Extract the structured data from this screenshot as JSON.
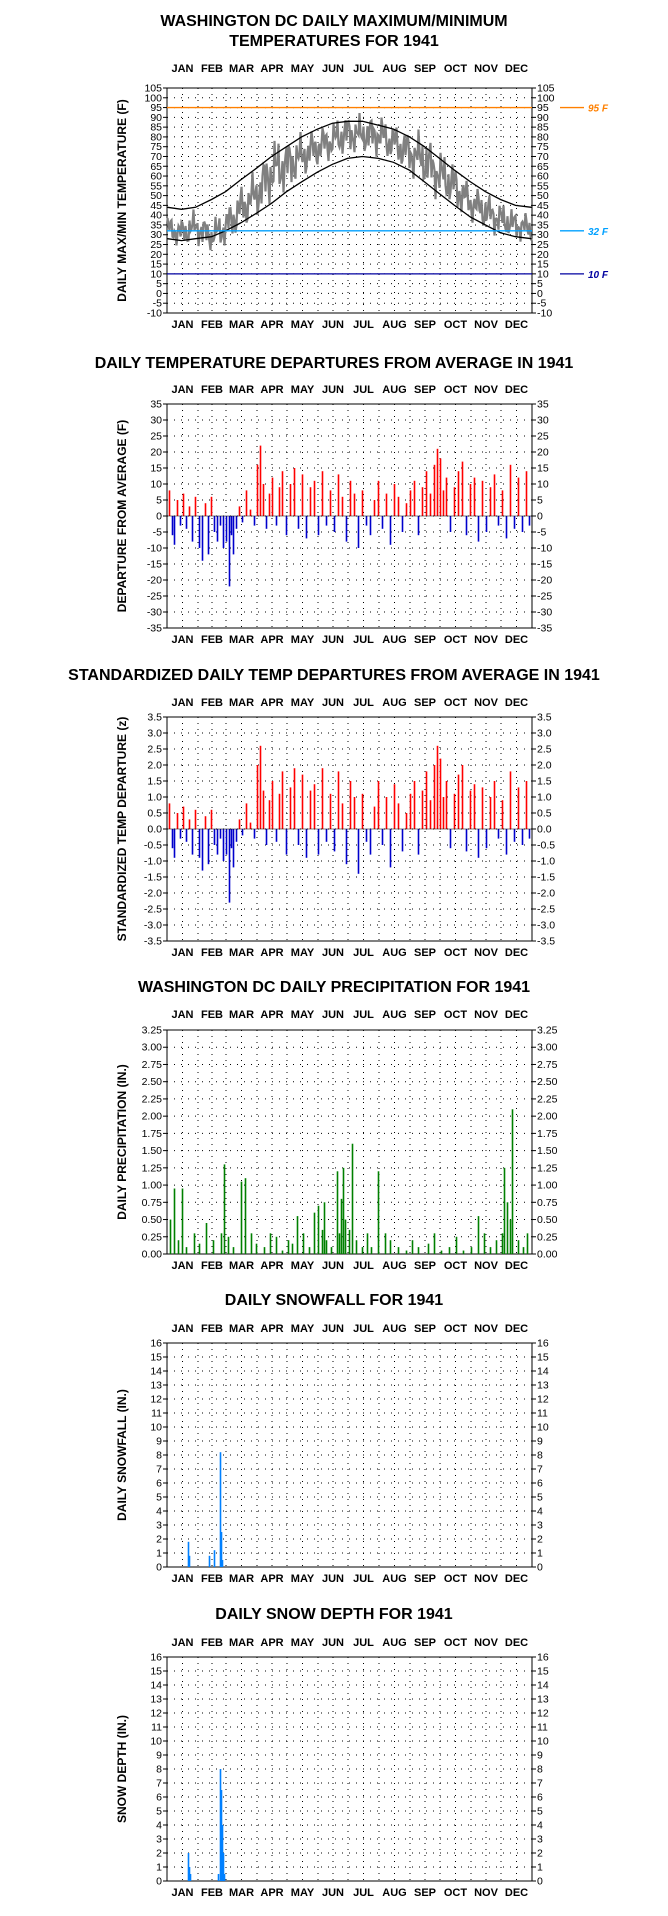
{
  "months": [
    "JAN",
    "FEB",
    "MAR",
    "APR",
    "MAY",
    "JUN",
    "JUL",
    "AUG",
    "SEP",
    "OCT",
    "NOV",
    "DEC"
  ],
  "chart_data": [
    {
      "id": "temp",
      "type": "line",
      "title": "WASHINGTON DC DAILY MAXIMUM/MINIMUM",
      "title2": "TEMPERATURES FOR 1941",
      "ylabel": "DAILY MAX/MIN TEMPERATURE (F)",
      "ylim": [
        -10,
        105
      ],
      "ystep": 5,
      "grid": true,
      "ref_lines": [
        {
          "value": 95,
          "label": "95 F",
          "color": "#ff8000"
        },
        {
          "value": 32,
          "label": "32 F",
          "color": "#00a0ff"
        },
        {
          "value": 10,
          "label": "10 F",
          "color": "#0000a0"
        }
      ],
      "series": [
        {
          "kind": "range",
          "color": "#808080",
          "x": [
            1,
            15,
            29,
            45,
            59,
            74,
            90,
            105,
            120,
            135,
            151,
            166,
            181,
            196,
            212,
            227,
            243,
            258,
            273,
            288,
            304,
            319,
            334,
            349,
            365
          ],
          "low": [
            24,
            22,
            24,
            20,
            22,
            28,
            36,
            44,
            50,
            56,
            62,
            66,
            70,
            70,
            68,
            64,
            58,
            52,
            46,
            40,
            34,
            30,
            28,
            26,
            24
          ],
          "high": [
            42,
            40,
            44,
            38,
            46,
            58,
            66,
            80,
            82,
            84,
            88,
            90,
            94,
            92,
            94,
            90,
            86,
            84,
            76,
            70,
            58,
            54,
            48,
            44,
            42
          ]
        },
        {
          "kind": "line",
          "color": "#000000",
          "x": [
            1,
            15,
            29,
            45,
            59,
            74,
            90,
            105,
            120,
            135,
            151,
            166,
            181,
            196,
            212,
            227,
            243,
            258,
            273,
            288,
            304,
            319,
            334,
            349,
            365
          ],
          "y": [
            44,
            43,
            44,
            48,
            52,
            58,
            64,
            70,
            75,
            80,
            84,
            87,
            88,
            88,
            86,
            84,
            80,
            75,
            69,
            63,
            57,
            52,
            48,
            45,
            44
          ]
        },
        {
          "kind": "line",
          "color": "#000000",
          "x": [
            1,
            15,
            29,
            45,
            59,
            74,
            90,
            105,
            120,
            135,
            151,
            166,
            181,
            196,
            212,
            227,
            243,
            258,
            273,
            288,
            304,
            319,
            334,
            349,
            365
          ],
          "y": [
            28,
            27,
            28,
            29,
            32,
            36,
            41,
            46,
            52,
            57,
            62,
            66,
            69,
            70,
            69,
            67,
            63,
            57,
            51,
            45,
            39,
            35,
            31,
            29,
            28
          ]
        }
      ]
    },
    {
      "id": "dep",
      "type": "bar",
      "title": "DAILY TEMPERATURE DEPARTURES FROM AVERAGE IN 1941",
      "ylabel": "DEPARTURE FROM AVERAGE (F)",
      "ylim": [
        -35,
        35
      ],
      "ystep": 5,
      "grid": true,
      "pos_color": "#ff0000",
      "neg_color": "#0000cc",
      "x": [
        3,
        6,
        8,
        11,
        14,
        17,
        20,
        23,
        26,
        29,
        33,
        36,
        39,
        42,
        45,
        48,
        51,
        54,
        57,
        60,
        63,
        65,
        67,
        70,
        73,
        76,
        80,
        84,
        88,
        91,
        94,
        97,
        100,
        103,
        106,
        110,
        113,
        116,
        120,
        124,
        128,
        132,
        136,
        140,
        144,
        148,
        152,
        156,
        160,
        164,
        168,
        172,
        176,
        180,
        184,
        188,
        192,
        196,
        200,
        204,
        208,
        212,
        216,
        220,
        224,
        228,
        232,
        236,
        240,
        244,
        248,
        252,
        256,
        260,
        264,
        268,
        271,
        274,
        277,
        280,
        284,
        288,
        292,
        296,
        300,
        304,
        308,
        312,
        316,
        320,
        324,
        328,
        332,
        336,
        340,
        344,
        348,
        352,
        356,
        360,
        363
      ],
      "y": [
        8,
        -6,
        -9,
        5,
        -3,
        7,
        -4,
        3,
        -8,
        6,
        -10,
        -14,
        4,
        -12,
        6,
        -5,
        -8,
        -3,
        -10,
        -8,
        -22,
        -6,
        -12,
        -4,
        3,
        -2,
        8,
        2,
        -3,
        16,
        22,
        10,
        -4,
        7,
        12,
        -3,
        9,
        14,
        -6,
        10,
        15,
        -4,
        13,
        -7,
        9,
        11,
        -6,
        14,
        -3,
        8,
        -5,
        13,
        6,
        -8,
        11,
        7,
        -10,
        8,
        -3,
        -6,
        5,
        11,
        -4,
        7,
        -9,
        10,
        6,
        -5,
        4,
        8,
        11,
        -6,
        9,
        14,
        7,
        16,
        21,
        18,
        8,
        12,
        -5,
        9,
        14,
        17,
        -6,
        10,
        12,
        -8,
        11,
        -5,
        9,
        13,
        -3,
        8,
        -7,
        16,
        -4,
        12,
        -5,
        14,
        -3
      ]
    },
    {
      "id": "std",
      "type": "bar",
      "title": "STANDARDIZED DAILY TEMP DEPARTURES FROM AVERAGE IN 1941",
      "ylabel": "STANDARDIZED TEMP DEPARTURE (z)",
      "ylim": [
        -3.5,
        3.5
      ],
      "ystep": 0.5,
      "decimals": 1,
      "grid": true,
      "pos_color": "#ff0000",
      "neg_color": "#0000cc",
      "x": [
        3,
        6,
        8,
        11,
        14,
        17,
        20,
        23,
        26,
        29,
        33,
        36,
        39,
        42,
        45,
        48,
        51,
        54,
        57,
        60,
        63,
        65,
        67,
        70,
        73,
        76,
        80,
        84,
        88,
        91,
        94,
        97,
        100,
        103,
        106,
        110,
        113,
        116,
        120,
        124,
        128,
        132,
        136,
        140,
        144,
        148,
        152,
        156,
        160,
        164,
        168,
        172,
        176,
        180,
        184,
        188,
        192,
        196,
        200,
        204,
        208,
        212,
        216,
        220,
        224,
        228,
        232,
        236,
        240,
        244,
        248,
        252,
        256,
        260,
        264,
        268,
        271,
        274,
        277,
        280,
        284,
        288,
        292,
        296,
        300,
        304,
        308,
        312,
        316,
        320,
        324,
        328,
        332,
        336,
        340,
        344,
        348,
        352,
        356,
        360,
        363
      ],
      "y": [
        0.8,
        -0.6,
        -0.9,
        0.5,
        -0.3,
        0.7,
        -0.4,
        0.3,
        -0.8,
        0.6,
        -0.9,
        -1.3,
        0.4,
        -1.1,
        0.6,
        -0.5,
        -0.8,
        -0.3,
        -1.0,
        -0.8,
        -2.3,
        -0.6,
        -1.2,
        -0.4,
        0.3,
        -0.2,
        0.8,
        0.2,
        -0.3,
        2.0,
        2.6,
        1.2,
        -0.5,
        0.9,
        1.5,
        -0.4,
        1.1,
        1.8,
        -0.8,
        1.3,
        1.9,
        -0.5,
        1.7,
        -0.9,
        1.2,
        1.4,
        -0.8,
        1.9,
        -0.4,
        1.1,
        -0.7,
        1.8,
        0.8,
        -1.1,
        1.5,
        1.0,
        -1.4,
        1.1,
        -0.4,
        -0.8,
        0.7,
        1.5,
        -0.5,
        1.0,
        -1.2,
        1.4,
        0.8,
        -0.7,
        0.5,
        1.1,
        1.5,
        -0.8,
        1.2,
        1.8,
        0.9,
        2.0,
        2.6,
        2.2,
        1.0,
        1.5,
        -0.6,
        1.1,
        1.7,
        2.0,
        -0.7,
        1.2,
        1.4,
        -0.9,
        1.3,
        -0.6,
        1.0,
        1.5,
        -0.3,
        0.9,
        -0.8,
        1.8,
        -0.4,
        1.3,
        -0.5,
        1.5,
        -0.3
      ]
    },
    {
      "id": "prcp",
      "type": "bar",
      "title": "WASHINGTON DC DAILY PRECIPITATION FOR 1941",
      "ylabel": "DAILY PRECIPITATION (IN.)",
      "ylim": [
        0,
        3.25
      ],
      "ystep": 0.25,
      "decimals": 2,
      "grid": true,
      "color": "#008000",
      "x": [
        4,
        8,
        12,
        16,
        20,
        28,
        33,
        40,
        47,
        55,
        58,
        62,
        67,
        75,
        79,
        85,
        90,
        98,
        104,
        110,
        116,
        122,
        126,
        131,
        137,
        143,
        148,
        152,
        156,
        158,
        160,
        165,
        171,
        173,
        175,
        177,
        179,
        183,
        186,
        190,
        196,
        201,
        205,
        212,
        219,
        224,
        232,
        240,
        246,
        252,
        262,
        268,
        275,
        283,
        290,
        297,
        305,
        312,
        318,
        324,
        330,
        336,
        338,
        341,
        344,
        346,
        352,
        357,
        361
      ],
      "y": [
        0.5,
        0.95,
        0.2,
        0.95,
        0.1,
        0.3,
        0.15,
        0.45,
        0.2,
        0.3,
        1.3,
        0.25,
        0.1,
        1.05,
        1.1,
        0.3,
        0.15,
        0.1,
        0.3,
        0.25,
        0.05,
        0.2,
        0.15,
        0.55,
        0.3,
        0.1,
        0.6,
        0.7,
        0.35,
        0.75,
        0.2,
        0.1,
        1.2,
        0.3,
        0.8,
        1.25,
        0.5,
        0.35,
        1.6,
        0.2,
        0.1,
        0.3,
        0.1,
        1.2,
        0.3,
        0.2,
        0.1,
        0.05,
        0.2,
        0.1,
        0.15,
        0.3,
        0.05,
        0.1,
        0.25,
        0.05,
        0.1,
        0.55,
        0.3,
        0.1,
        0.2,
        0.3,
        1.25,
        0.75,
        0.5,
        2.1,
        0.2,
        0.1,
        0.3
      ]
    },
    {
      "id": "snow",
      "type": "bar",
      "title": "DAILY SNOWFALL FOR 1941",
      "ylabel": "DAILY SNOWFALL (IN.)",
      "ylim": [
        0,
        16
      ],
      "ystep": 1,
      "grid": true,
      "color": "#0080ff",
      "x": [
        22,
        23,
        43,
        48,
        54,
        55,
        56
      ],
      "y": [
        1.8,
        0.8,
        0.8,
        1.2,
        8.2,
        2.5,
        0.5
      ]
    },
    {
      "id": "depth",
      "type": "bar",
      "title": "DAILY SNOW DEPTH FOR 1941",
      "ylabel": "SNOW DEPTH (IN.)",
      "ylim": [
        0,
        16
      ],
      "ystep": 1,
      "grid": true,
      "color": "#0080ff",
      "x": [
        22,
        23,
        24,
        52,
        54,
        55,
        56,
        57,
        58
      ],
      "y": [
        2.0,
        1.0,
        0.5,
        0.5,
        8.0,
        6.5,
        4.0,
        2.0,
        0.5
      ]
    }
  ]
}
